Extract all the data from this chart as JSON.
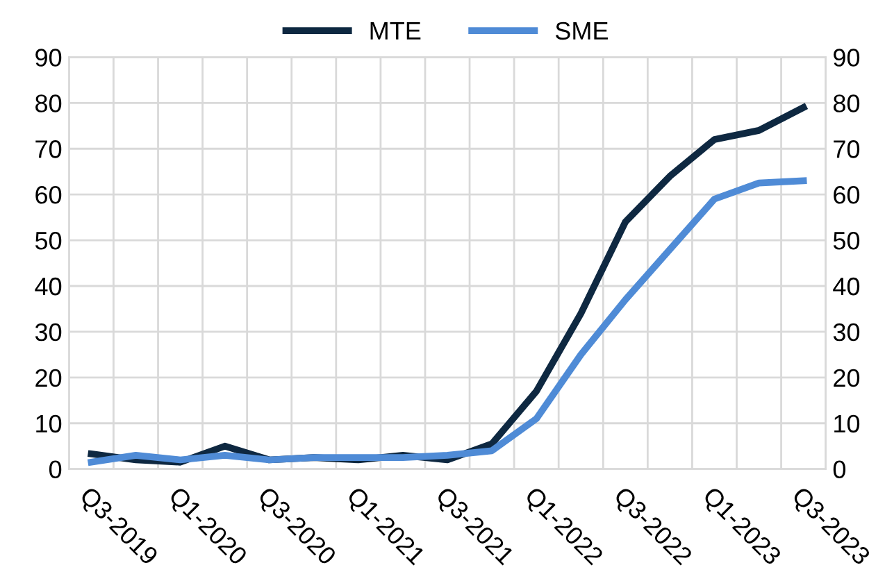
{
  "chart_data": {
    "type": "line",
    "categories": [
      "Q3-2019",
      null,
      "Q1-2020",
      null,
      "Q3-2020",
      null,
      "Q1-2021",
      null,
      "Q3-2021",
      null,
      "Q1-2022",
      null,
      "Q3-2022",
      null,
      "Q1-2023",
      null,
      "Q3-2023"
    ],
    "series": [
      {
        "name": "MTE",
        "color": "#0e2841",
        "values": [
          3.3,
          2,
          1.5,
          5,
          2,
          2.5,
          2,
          3,
          2,
          5.5,
          17,
          34,
          54,
          64,
          72,
          74,
          79
        ]
      },
      {
        "name": "SME",
        "color": "#4f8bd6",
        "values": [
          1.5,
          3,
          2,
          3,
          2,
          2.5,
          2.5,
          2.5,
          3,
          4,
          11,
          25,
          37,
          48,
          59,
          62.5,
          63
        ]
      }
    ],
    "ylim": [
      0,
      90
    ],
    "yticks": [
      0,
      10,
      20,
      30,
      40,
      50,
      60,
      70,
      80,
      90
    ],
    "y2lim": [
      0,
      90
    ],
    "y2ticks": [
      0,
      10,
      20,
      30,
      40,
      50,
      60,
      70,
      80,
      90
    ],
    "grid": true,
    "legend": "top",
    "marker": "none",
    "line_style": "solid"
  }
}
